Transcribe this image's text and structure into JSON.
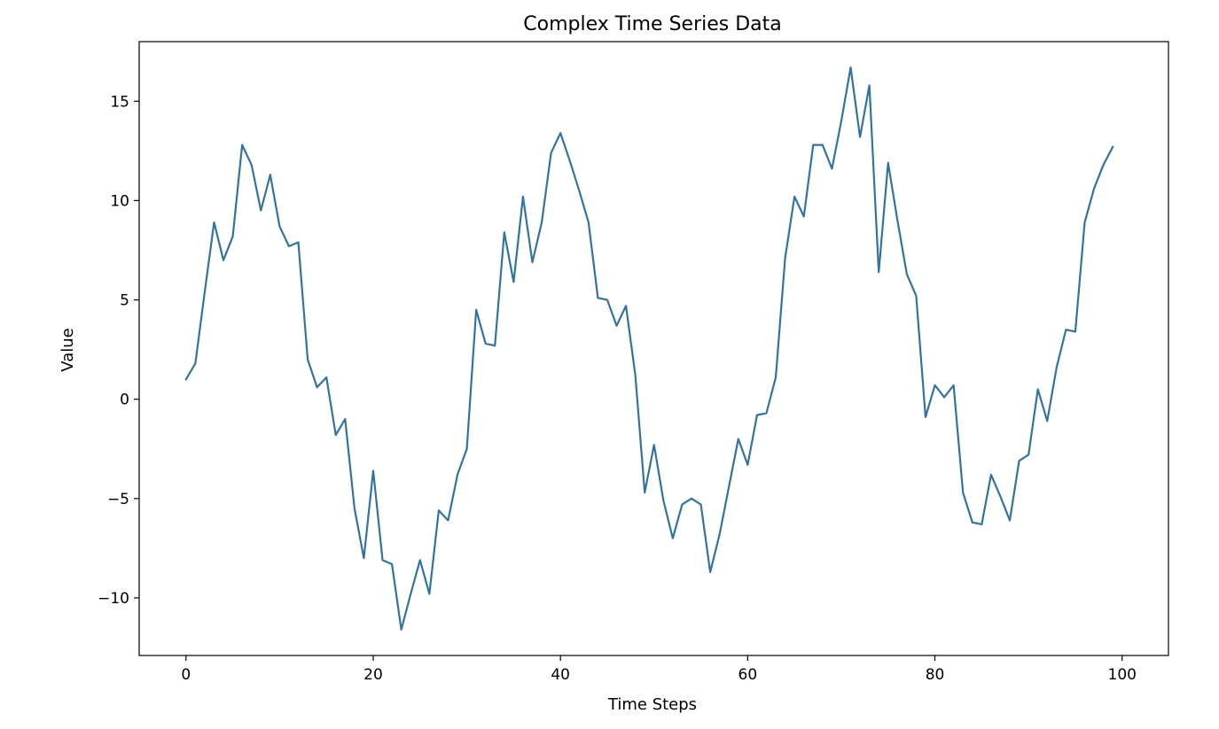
{
  "chart_data": {
    "type": "line",
    "title": "Complex Time Series Data",
    "xlabel": "Time Steps",
    "ylabel": "Value",
    "xlim": [
      -5,
      104.95
    ],
    "ylim": [
      -12.9,
      18.0
    ],
    "xticks": [
      0,
      20,
      40,
      60,
      80,
      100
    ],
    "yticks": [
      -10,
      -5,
      0,
      5,
      10,
      15
    ],
    "ytick_labels": [
      "−10",
      "−5",
      "0",
      "5",
      "10",
      "15"
    ],
    "grid": false,
    "line_color": "#3274a1",
    "series": [
      {
        "x": [
          0,
          1,
          2,
          3,
          4,
          5,
          6,
          7,
          8,
          9,
          10,
          11,
          12,
          13,
          14,
          15,
          16,
          17,
          18,
          19,
          20,
          21,
          22,
          23,
          24,
          25,
          26,
          27,
          28,
          29,
          30,
          31,
          32,
          33,
          34,
          35,
          36,
          37,
          38,
          39,
          40,
          41,
          42,
          43,
          44,
          45,
          46,
          47,
          48,
          49,
          50,
          51,
          52,
          53,
          54,
          55,
          56,
          57,
          58,
          59,
          60,
          61,
          62,
          63,
          64,
          65,
          66,
          67,
          68,
          69,
          70,
          71,
          72,
          73,
          74,
          75,
          76,
          77,
          78,
          79,
          80,
          81,
          82,
          83,
          84,
          85,
          86,
          87,
          88,
          89,
          90,
          91,
          92,
          93,
          94,
          95,
          96,
          97,
          98,
          99
        ],
        "values": [
          1.0,
          1.8,
          5.4,
          8.9,
          7.0,
          8.2,
          12.8,
          11.8,
          9.5,
          11.3,
          8.7,
          7.7,
          7.9,
          2.0,
          0.6,
          1.1,
          -1.8,
          -1.0,
          -5.5,
          -8.0,
          -3.6,
          -8.1,
          -8.3,
          -11.6,
          -9.8,
          -8.1,
          -9.8,
          -5.6,
          -6.1,
          -3.8,
          -2.5,
          4.5,
          2.8,
          2.7,
          8.4,
          5.9,
          10.2,
          6.9,
          8.9,
          12.4,
          13.4,
          12.0,
          10.5,
          8.9,
          5.1,
          5.0,
          3.7,
          4.7,
          1.2,
          -4.7,
          -2.3,
          -5.1,
          -7.0,
          -5.3,
          -5.0,
          -5.3,
          -8.7,
          -6.8,
          -4.4,
          -2.0,
          -3.3,
          -0.8,
          -0.7,
          1.1,
          7.1,
          10.2,
          9.2,
          12.8,
          12.8,
          11.6,
          14.0,
          16.7,
          13.2,
          15.8,
          6.4,
          11.9,
          9.0,
          6.3,
          5.2,
          -0.9,
          0.7,
          0.1,
          0.7,
          -4.7,
          -6.2,
          -6.3,
          -3.8,
          -4.9,
          -6.1,
          -3.1,
          -2.8,
          0.5,
          -1.1,
          1.6,
          3.5,
          3.4,
          8.9,
          10.6,
          11.8,
          12.7
        ]
      }
    ]
  }
}
